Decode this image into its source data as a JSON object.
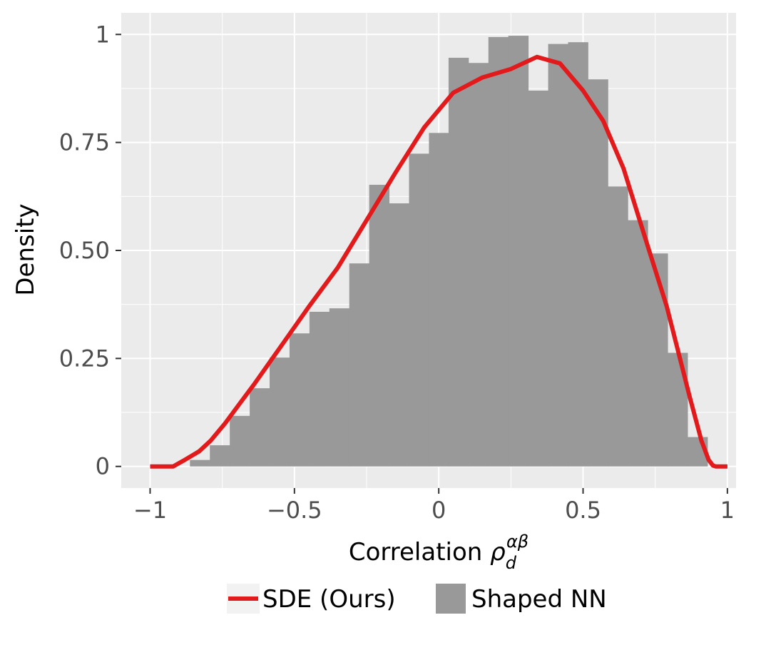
{
  "chart_data": {
    "type": "bar",
    "xlabel": "Correlation ",
    "xlabel_symbol": "ρ",
    "xlabel_sub": "d",
    "xlabel_sup": "αβ",
    "ylabel": "Density",
    "xlim": [
      -1.1,
      1.03
    ],
    "ylim": [
      -0.05,
      1.05
    ],
    "grid": true,
    "legend_placement": "bottom",
    "x_ticks": [
      -1,
      -0.5,
      0,
      0.5,
      1
    ],
    "x_tick_labels": [
      "−1",
      "−0.5",
      "0",
      "0.5",
      "1"
    ],
    "y_ticks": [
      0,
      0.25,
      0.5,
      0.75,
      1
    ],
    "y_tick_labels": [
      "0",
      "0.25",
      "0.50",
      "0.75",
      "1"
    ],
    "series": [
      {
        "name": "Shaped NN",
        "kind": "histogram",
        "color": "#999999",
        "bin_width": 0.0689,
        "bins": [
          {
            "x0": -0.862,
            "value": 0.015
          },
          {
            "x0": -0.793,
            "value": 0.049
          },
          {
            "x0": -0.724,
            "value": 0.117
          },
          {
            "x0": -0.655,
            "value": 0.181
          },
          {
            "x0": -0.586,
            "value": 0.252
          },
          {
            "x0": -0.517,
            "value": 0.308
          },
          {
            "x0": -0.448,
            "value": 0.358
          },
          {
            "x0": -0.379,
            "value": 0.366
          },
          {
            "x0": -0.31,
            "value": 0.47
          },
          {
            "x0": -0.241,
            "value": 0.652
          },
          {
            "x0": -0.172,
            "value": 0.609
          },
          {
            "x0": -0.103,
            "value": 0.724
          },
          {
            "x0": -0.034,
            "value": 0.772
          },
          {
            "x0": 0.034,
            "value": 0.946
          },
          {
            "x0": 0.103,
            "value": 0.934
          },
          {
            "x0": 0.172,
            "value": 0.994
          },
          {
            "x0": 0.241,
            "value": 0.997
          },
          {
            "x0": 0.31,
            "value": 0.87
          },
          {
            "x0": 0.379,
            "value": 0.978
          },
          {
            "x0": 0.448,
            "value": 0.982
          },
          {
            "x0": 0.517,
            "value": 0.896
          },
          {
            "x0": 0.586,
            "value": 0.648
          },
          {
            "x0": 0.655,
            "value": 0.57
          },
          {
            "x0": 0.724,
            "value": 0.493
          },
          {
            "x0": 0.793,
            "value": 0.263
          },
          {
            "x0": 0.862,
            "value": 0.068
          }
        ]
      },
      {
        "name": "SDE (Ours)",
        "kind": "line",
        "color": "#e31a1c",
        "x": [
          -1.0,
          -0.92,
          -0.88,
          -0.83,
          -0.79,
          -0.74,
          -0.69,
          -0.64,
          -0.55,
          -0.45,
          -0.35,
          -0.25,
          -0.15,
          -0.05,
          0.05,
          0.15,
          0.25,
          0.34,
          0.42,
          0.5,
          0.57,
          0.64,
          0.71,
          0.79,
          0.87,
          0.91,
          0.935,
          0.95,
          0.96,
          1.0
        ],
        "y": [
          0.0,
          0.0,
          0.015,
          0.035,
          0.06,
          0.1,
          0.145,
          0.19,
          0.275,
          0.37,
          0.46,
          0.57,
          0.68,
          0.785,
          0.865,
          0.9,
          0.92,
          0.948,
          0.933,
          0.87,
          0.8,
          0.69,
          0.54,
          0.37,
          0.16,
          0.06,
          0.015,
          0.002,
          0.0,
          0.0
        ]
      }
    ]
  }
}
